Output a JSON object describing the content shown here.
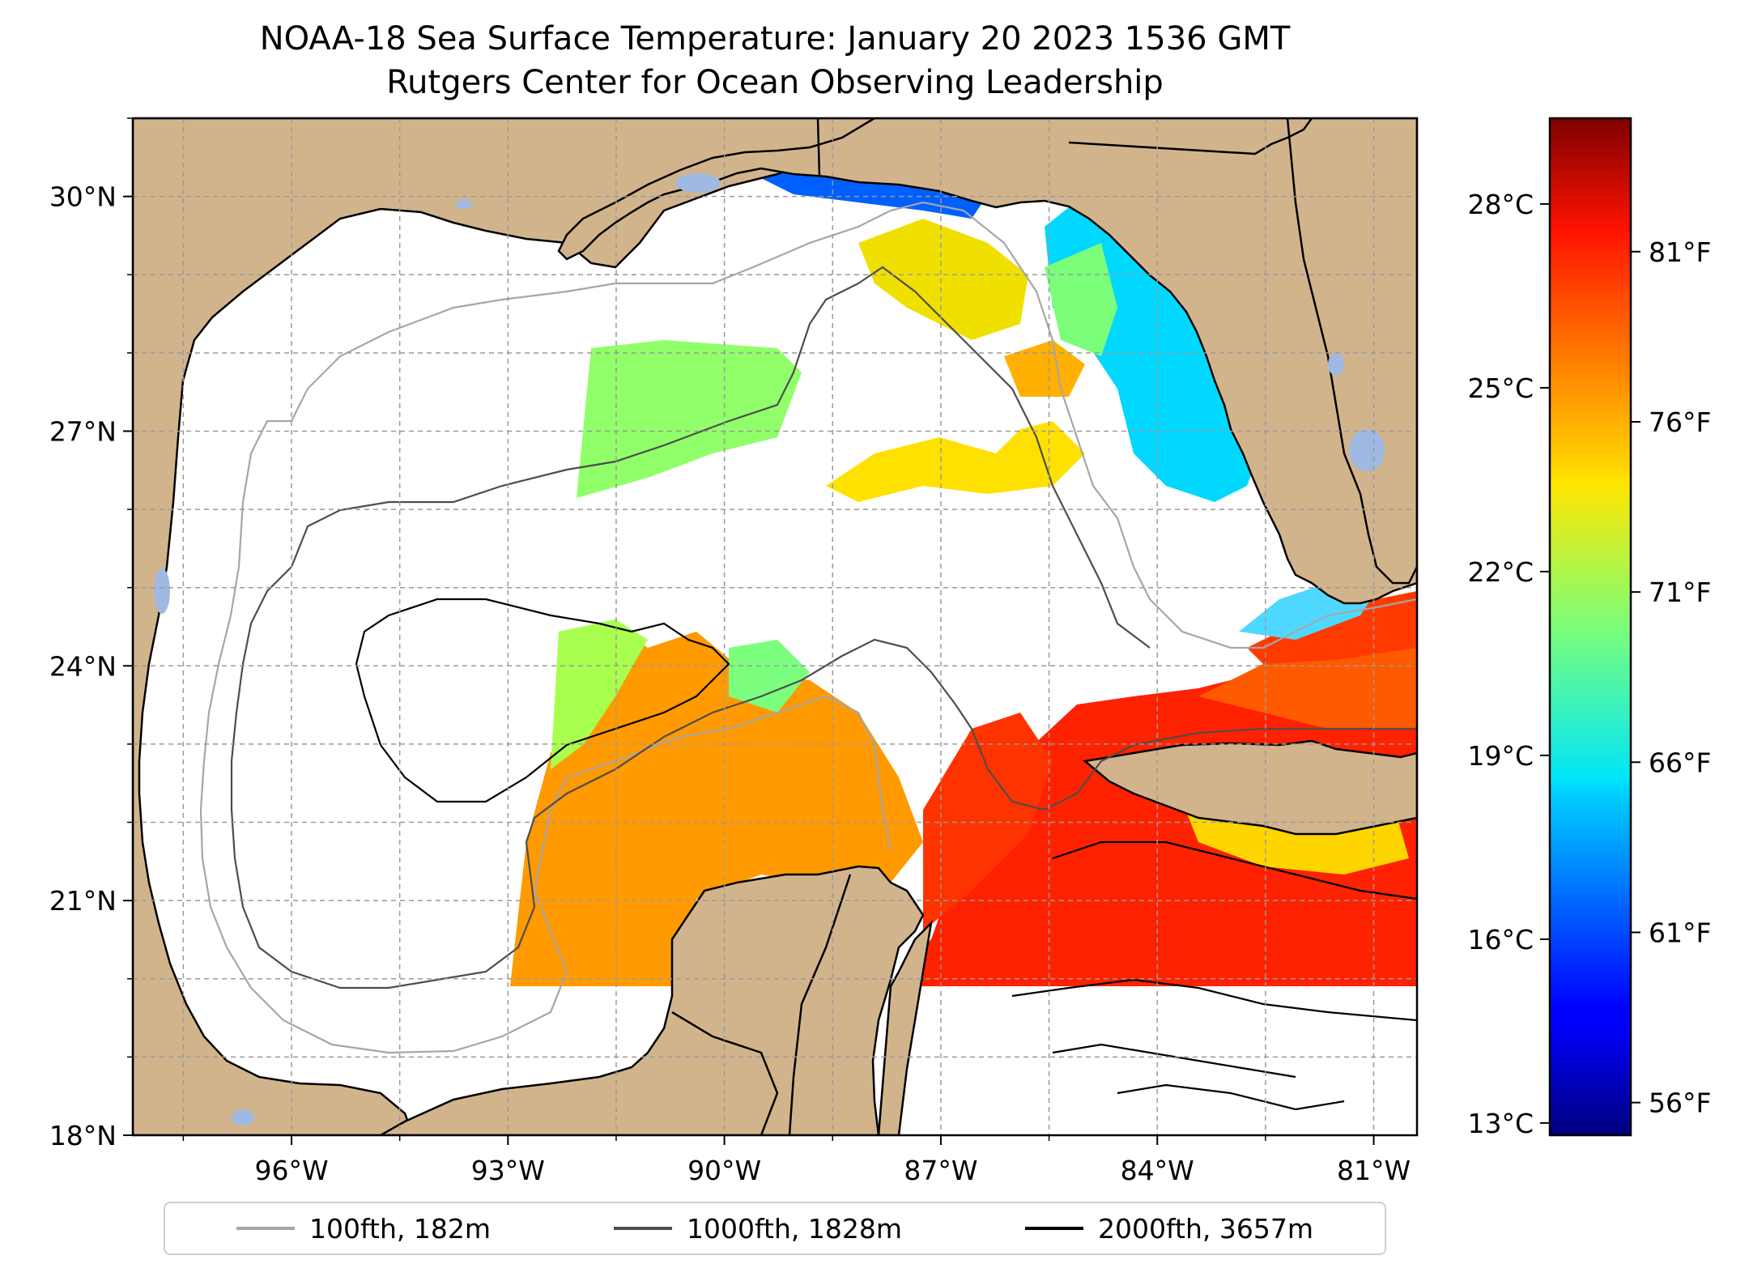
{
  "title": "NOAA-18 Sea Surface Temperature: January 20 2023 1536 GMT",
  "subtitle": "Rutgers Center for Ocean Observing Leadership",
  "map": {
    "lon_range": [
      -98.2,
      -80.4
    ],
    "lat_range": [
      18.0,
      31.0
    ],
    "lon_ticks": [
      {
        "value": -96,
        "label": "96°W"
      },
      {
        "value": -93,
        "label": "93°W"
      },
      {
        "value": -90,
        "label": "90°W"
      },
      {
        "value": -87,
        "label": "87°W"
      },
      {
        "value": -84,
        "label": "84°W"
      },
      {
        "value": -81,
        "label": "81°W"
      }
    ],
    "lat_ticks": [
      {
        "value": 18,
        "label": "18°N"
      },
      {
        "value": 21,
        "label": "21°N"
      },
      {
        "value": 24,
        "label": "24°N"
      },
      {
        "value": 27,
        "label": "27°N"
      },
      {
        "value": 30,
        "label": "30°N"
      }
    ],
    "gridlines": true,
    "land_color": "#d2b48c",
    "lake_color": "#9fb9e3"
  },
  "colorbar": {
    "colormap": "jet",
    "celsius_range": [
      12.8,
      29.4
    ],
    "celsius_ticks": [
      {
        "value": 13,
        "label": "13°C"
      },
      {
        "value": 16,
        "label": "16°C"
      },
      {
        "value": 19,
        "label": "19°C"
      },
      {
        "value": 22,
        "label": "22°C"
      },
      {
        "value": 25,
        "label": "25°C"
      },
      {
        "value": 28,
        "label": "28°C"
      }
    ],
    "fahrenheit_ticks": [
      {
        "value": 56,
        "label": "56°F"
      },
      {
        "value": 61,
        "label": "61°F"
      },
      {
        "value": 66,
        "label": "66°F"
      },
      {
        "value": 71,
        "label": "71°F"
      },
      {
        "value": 76,
        "label": "76°F"
      },
      {
        "value": 81,
        "label": "81°F"
      }
    ]
  },
  "legend": {
    "placement": "bottom-center",
    "items": [
      {
        "label": "100fth, 182m",
        "color": "#a6a6a6"
      },
      {
        "label": "1000fth, 1828m",
        "color": "#4d4d4d"
      },
      {
        "label": "2000fth, 3657m",
        "color": "#000000"
      }
    ]
  }
}
